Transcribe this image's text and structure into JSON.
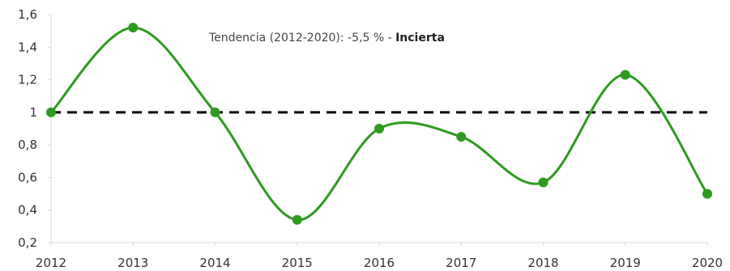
{
  "chart_data": {
    "type": "line",
    "x": [
      "2012",
      "2013",
      "2014",
      "2015",
      "2016",
      "2017",
      "2018",
      "2019",
      "2020"
    ],
    "series": [
      {
        "values": [
          1.0,
          1.52,
          1.0,
          0.34,
          0.9,
          0.85,
          0.57,
          1.23,
          0.5
        ],
        "color": "#2e9a1f",
        "smooth": true
      }
    ],
    "reference_line": {
      "value": 1,
      "style": "dashed",
      "color": "#000000"
    },
    "ylim": [
      0.2,
      1.6
    ],
    "yticks": [
      "0,2",
      "0,4",
      "0,6",
      "0,8",
      "1",
      "1,2",
      "1,4",
      "1,6"
    ],
    "ytick_values": [
      0.2,
      0.4,
      0.6,
      0.8,
      1.0,
      1.2,
      1.4,
      1.6
    ],
    "grid": false,
    "annotation": {
      "text": "Tendencia (2012-2020): -5,5 % - ",
      "bold": "Incierta"
    }
  }
}
